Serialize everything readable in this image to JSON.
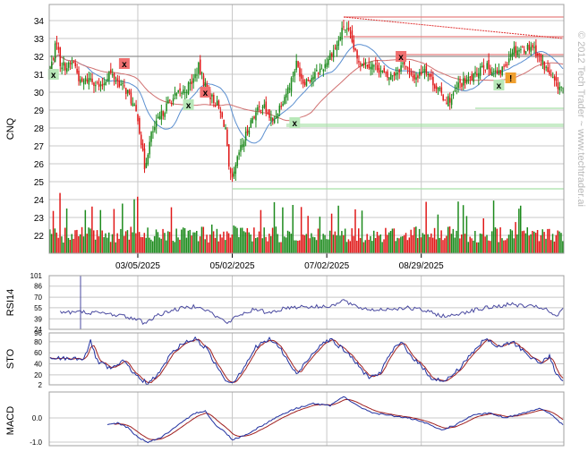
{
  "chart_data": [
    {
      "type": "candlestick",
      "ylabel": "CNQ",
      "ylim": [
        24,
        34
      ],
      "y_ticks": [
        25,
        26,
        27,
        28,
        29,
        30,
        31,
        32,
        33,
        34
      ],
      "x_ticks": [
        "03/05/2025",
        "05/02/2025",
        "07/02/2025",
        "08/29/2025"
      ],
      "price_anchors": [
        [
          0,
          31.2
        ],
        [
          4,
          32.9
        ],
        [
          6,
          31.6
        ],
        [
          10,
          31.4
        ],
        [
          14,
          31.7
        ],
        [
          18,
          30.5
        ],
        [
          24,
          30.8
        ],
        [
          30,
          30.2
        ],
        [
          35,
          31.1
        ],
        [
          40,
          30.6
        ],
        [
          46,
          30.0
        ],
        [
          52,
          28.6
        ],
        [
          56,
          25.8
        ],
        [
          60,
          27.6
        ],
        [
          64,
          28.4
        ],
        [
          70,
          29.4
        ],
        [
          76,
          29.9
        ],
        [
          80,
          30.1
        ],
        [
          85,
          30.7
        ],
        [
          88,
          31.4
        ],
        [
          91,
          30.6
        ],
        [
          95,
          29.8
        ],
        [
          99,
          29.3
        ],
        [
          104,
          28.0
        ],
        [
          106,
          25.6
        ],
        [
          108,
          25.0
        ],
        [
          112,
          26.6
        ],
        [
          116,
          27.6
        ],
        [
          120,
          28.6
        ],
        [
          126,
          29.3
        ],
        [
          132,
          28.3
        ],
        [
          136,
          29.2
        ],
        [
          142,
          30.4
        ],
        [
          146,
          31.6
        ],
        [
          150,
          30.6
        ],
        [
          156,
          30.9
        ],
        [
          162,
          31.4
        ],
        [
          166,
          32.1
        ],
        [
          170,
          32.6
        ],
        [
          174,
          33.7
        ],
        [
          178,
          33.1
        ],
        [
          182,
          31.8
        ],
        [
          188,
          31.6
        ],
        [
          194,
          31.4
        ],
        [
          200,
          30.8
        ],
        [
          206,
          31.2
        ],
        [
          210,
          31.7
        ],
        [
          214,
          30.8
        ],
        [
          218,
          30.9
        ],
        [
          222,
          31.4
        ],
        [
          228,
          30.4
        ],
        [
          234,
          29.6
        ],
        [
          238,
          29.6
        ],
        [
          242,
          30.4
        ],
        [
          246,
          30.6
        ],
        [
          252,
          30.9
        ],
        [
          256,
          31.6
        ],
        [
          262,
          31.2
        ],
        [
          266,
          31.0
        ],
        [
          270,
          31.6
        ],
        [
          274,
          32.4
        ],
        [
          280,
          32.4
        ],
        [
          286,
          32.6
        ],
        [
          292,
          31.6
        ],
        [
          296,
          31.0
        ],
        [
          300,
          30.4
        ],
        [
          304,
          30.2
        ]
      ],
      "moving_average_1_color": "#5b8fd0",
      "moving_average_2_color": "#d07070",
      "resistance_trendline": [
        [
          174,
          34.2
        ],
        [
          304,
          33.0
        ]
      ],
      "horizontal_levels": [
        {
          "from": 0,
          "value": 32.0,
          "color": "#909090"
        },
        {
          "from": 174,
          "value": 34.2,
          "color": "#e88080"
        },
        {
          "from": 174,
          "value": 33.1,
          "color": "#e88080"
        },
        {
          "from": 206,
          "value": 32.1,
          "color": "#e88080"
        },
        {
          "from": 252,
          "value": 29.1,
          "color": "#a8e0a8"
        },
        {
          "from": 140,
          "value": 28.1,
          "color": "#a8e0a8"
        },
        {
          "from": 140,
          "value": 28.2,
          "color": "#a8e0a8"
        },
        {
          "from": 108,
          "value": 24.6,
          "color": "#a8e0a8"
        }
      ],
      "markers": [
        {
          "bar": 2,
          "value": 31.0,
          "label": "x",
          "kind": "buy"
        },
        {
          "bar": 44,
          "value": 31.6,
          "label": "x",
          "kind": "sell"
        },
        {
          "bar": 82,
          "value": 29.3,
          "label": "x",
          "kind": "buy"
        },
        {
          "bar": 92,
          "value": 30.0,
          "label": "x",
          "kind": "sell"
        },
        {
          "bar": 145,
          "value": 28.3,
          "label": "x",
          "kind": "buy"
        },
        {
          "bar": 208,
          "value": 32.0,
          "label": "x",
          "kind": "sell"
        },
        {
          "bar": 266,
          "value": 30.4,
          "label": "x",
          "kind": "buy"
        },
        {
          "bar": 273,
          "value": 30.8,
          "label": "!",
          "kind": "alert"
        }
      ],
      "volume_ylim": [
        21,
        24
      ],
      "volume_ticks": [
        22,
        23,
        24
      ],
      "up_color": "#1c8a1c",
      "down_color": "#e01818"
    },
    {
      "type": "line",
      "ylabel": "RSI14",
      "ylim": [
        24,
        101
      ],
      "y_ticks": [
        101,
        86,
        70,
        55,
        39,
        24
      ],
      "anchors": [
        [
          0,
          55
        ],
        [
          5,
          50
        ],
        [
          10,
          48
        ],
        [
          20,
          49
        ],
        [
          30,
          47
        ],
        [
          40,
          45
        ],
        [
          52,
          38
        ],
        [
          56,
          33
        ],
        [
          62,
          42
        ],
        [
          70,
          50
        ],
        [
          80,
          55
        ],
        [
          88,
          58
        ],
        [
          94,
          50
        ],
        [
          100,
          40
        ],
        [
          106,
          33
        ],
        [
          110,
          42
        ],
        [
          120,
          52
        ],
        [
          130,
          48
        ],
        [
          140,
          55
        ],
        [
          150,
          57
        ],
        [
          160,
          56
        ],
        [
          170,
          60
        ],
        [
          174,
          66
        ],
        [
          180,
          57
        ],
        [
          190,
          52
        ],
        [
          200,
          53
        ],
        [
          210,
          55
        ],
        [
          220,
          52
        ],
        [
          230,
          45
        ],
        [
          236,
          42
        ],
        [
          244,
          48
        ],
        [
          252,
          52
        ],
        [
          262,
          56
        ],
        [
          274,
          60
        ],
        [
          282,
          57
        ],
        [
          292,
          55
        ],
        [
          300,
          42
        ],
        [
          304,
          52
        ]
      ],
      "color": "#4a4aa0"
    },
    {
      "type": "line",
      "ylabel": "STO",
      "ylim": [
        2,
        96
      ],
      "y_ticks": [
        96,
        80,
        60,
        40,
        20,
        2
      ],
      "anchors": [
        [
          0,
          50
        ],
        [
          20,
          50
        ],
        [
          24,
          80
        ],
        [
          28,
          45
        ],
        [
          36,
          30
        ],
        [
          44,
          45
        ],
        [
          52,
          15
        ],
        [
          58,
          5
        ],
        [
          64,
          20
        ],
        [
          72,
          60
        ],
        [
          80,
          80
        ],
        [
          86,
          85
        ],
        [
          92,
          70
        ],
        [
          98,
          40
        ],
        [
          104,
          12
        ],
        [
          108,
          5
        ],
        [
          114,
          30
        ],
        [
          122,
          70
        ],
        [
          130,
          85
        ],
        [
          136,
          70
        ],
        [
          142,
          40
        ],
        [
          146,
          20
        ],
        [
          152,
          45
        ],
        [
          160,
          75
        ],
        [
          166,
          85
        ],
        [
          172,
          70
        ],
        [
          178,
          55
        ],
        [
          184,
          30
        ],
        [
          190,
          15
        ],
        [
          196,
          25
        ],
        [
          202,
          60
        ],
        [
          208,
          80
        ],
        [
          214,
          55
        ],
        [
          220,
          35
        ],
        [
          226,
          15
        ],
        [
          234,
          8
        ],
        [
          242,
          30
        ],
        [
          250,
          60
        ],
        [
          258,
          85
        ],
        [
          266,
          70
        ],
        [
          274,
          80
        ],
        [
          282,
          60
        ],
        [
          290,
          40
        ],
        [
          296,
          55
        ],
        [
          300,
          20
        ],
        [
          304,
          8
        ]
      ],
      "color_k": "#2030a0",
      "color_d": "#a02020"
    },
    {
      "type": "line",
      "ylabel": "MACD",
      "ylim": [
        -1.0,
        1.0
      ],
      "y_ticks": [
        0.0,
        -1.0
      ],
      "y_tick_labels": [
        "0.0",
        "-1.0"
      ],
      "start": 34,
      "anchors": [
        [
          34,
          -0.3
        ],
        [
          40,
          -0.2
        ],
        [
          46,
          -0.4
        ],
        [
          52,
          -0.8
        ],
        [
          58,
          -1.0
        ],
        [
          66,
          -0.8
        ],
        [
          76,
          -0.3
        ],
        [
          86,
          0.2
        ],
        [
          92,
          0.3
        ],
        [
          98,
          -0.3
        ],
        [
          104,
          -0.6
        ],
        [
          108,
          -0.9
        ],
        [
          116,
          -0.7
        ],
        [
          126,
          -0.3
        ],
        [
          136,
          0.1
        ],
        [
          146,
          0.4
        ],
        [
          156,
          0.6
        ],
        [
          166,
          0.5
        ],
        [
          174,
          0.9
        ],
        [
          182,
          0.5
        ],
        [
          192,
          0.2
        ],
        [
          202,
          0.1
        ],
        [
          212,
          0.0
        ],
        [
          222,
          -0.2
        ],
        [
          232,
          -0.5
        ],
        [
          240,
          -0.3
        ],
        [
          250,
          0.1
        ],
        [
          260,
          0.2
        ],
        [
          270,
          0.0
        ],
        [
          280,
          0.2
        ],
        [
          290,
          0.4
        ],
        [
          298,
          0.1
        ],
        [
          304,
          -0.3
        ]
      ],
      "color_macd": "#2030a0",
      "color_signal": "#a02020"
    }
  ],
  "watermark": "© 2012 Tech Trader ~ www.techtrader.ai",
  "colors": {
    "grid": "#c8c8c8",
    "axis": "#808080",
    "frame": "#a0a0a0"
  }
}
